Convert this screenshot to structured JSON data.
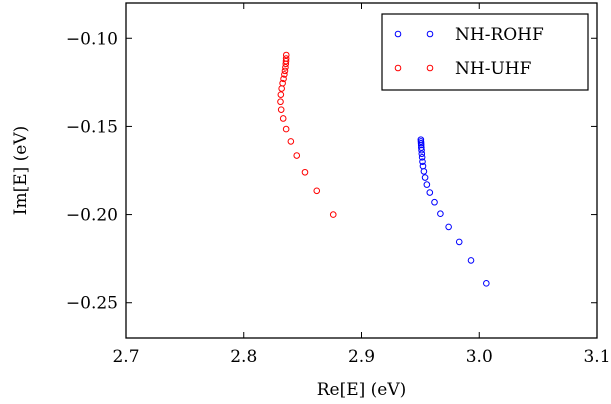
{
  "chart_data": {
    "type": "scatter",
    "title": "",
    "xlabel": "Re[E] (eV)",
    "ylabel": "Im[E] (eV)",
    "xlim": [
      2.7,
      3.1
    ],
    "ylim": [
      -0.27,
      -0.08
    ],
    "x_ticks": [
      "2.7",
      "2.8",
      "2.9",
      "3.0",
      "3.1"
    ],
    "y_ticks": [
      "−0.10",
      "−0.15",
      "−0.20",
      "−0.25"
    ],
    "legend_position": "top-right",
    "grid": false,
    "series": [
      {
        "name": "NH-ROHF",
        "color": "#0000ff",
        "marker": "open-circle",
        "x": [
          3.006,
          2.993,
          2.983,
          2.974,
          2.967,
          2.962,
          2.958,
          2.9555,
          2.954,
          2.953,
          2.9522,
          2.9518,
          2.9515,
          2.9512,
          2.951,
          2.9508,
          2.9507,
          2.9506,
          2.9505,
          2.9504
        ],
        "y": [
          -0.239,
          -0.226,
          -0.2155,
          -0.207,
          -0.1995,
          -0.193,
          -0.1875,
          -0.183,
          -0.179,
          -0.1755,
          -0.1725,
          -0.17,
          -0.1675,
          -0.1655,
          -0.1635,
          -0.162,
          -0.1605,
          -0.1595,
          -0.1585,
          -0.1575
        ]
      },
      {
        "name": "NH-UHF",
        "color": "#ff0000",
        "marker": "open-circle",
        "x": [
          2.876,
          2.862,
          2.852,
          2.845,
          2.84,
          2.836,
          2.8335,
          2.8318,
          2.8312,
          2.8315,
          2.8322,
          2.833,
          2.8338,
          2.8345,
          2.835,
          2.8354,
          2.8357,
          2.8359,
          2.836,
          2.8361
        ],
        "y": [
          -0.2,
          -0.1865,
          -0.176,
          -0.1665,
          -0.1585,
          -0.1515,
          -0.1455,
          -0.1405,
          -0.136,
          -0.132,
          -0.1285,
          -0.1255,
          -0.123,
          -0.1205,
          -0.1185,
          -0.1165,
          -0.1145,
          -0.113,
          -0.1115,
          -0.1095
        ]
      }
    ]
  }
}
